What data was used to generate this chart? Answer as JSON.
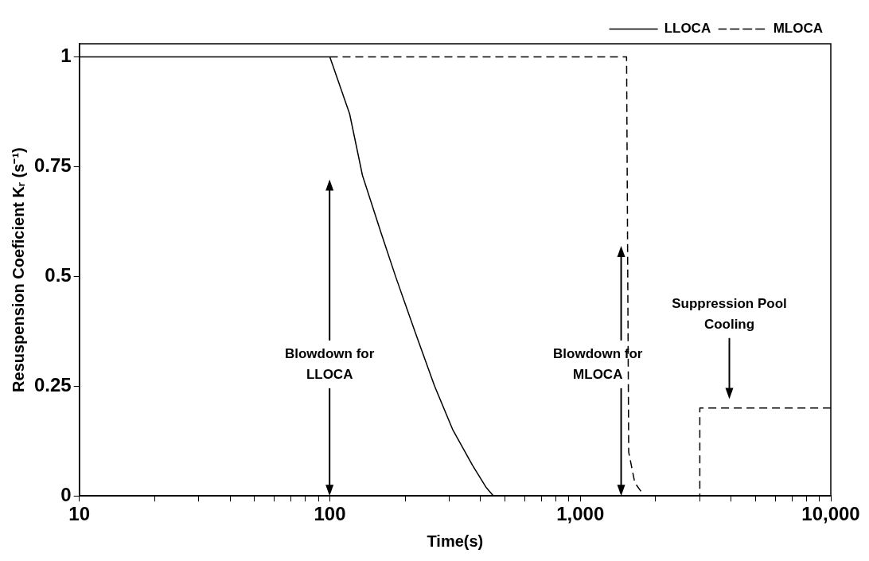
{
  "chart_data": {
    "type": "line",
    "xlabel": "Time(s)",
    "ylabel": "Resuspension Coeficient Kᵣ (s⁻¹)",
    "log": "x",
    "xlim": [
      10,
      10000
    ],
    "ylim": [
      0,
      1.03
    ],
    "xticks": [
      10,
      {
        "value": 20,
        "label": null
      },
      {
        "value": 30,
        "label": null
      },
      {
        "value": 40,
        "label": null
      },
      {
        "value": 50,
        "label": null
      },
      {
        "value": 60,
        "label": null
      },
      {
        "value": 70,
        "label": null
      },
      {
        "value": 80,
        "label": null
      },
      {
        "value": 90,
        "label": null
      },
      100,
      {
        "value": 200,
        "label": null
      },
      {
        "value": 300,
        "label": null
      },
      {
        "value": 400,
        "label": null
      },
      {
        "value": 500,
        "label": null
      },
      {
        "value": 600,
        "label": null
      },
      {
        "value": 700,
        "label": null
      },
      {
        "value": 800,
        "label": null
      },
      {
        "value": 900,
        "label": null
      },
      {
        "value": 1000,
        "label": "1,000"
      },
      {
        "value": 2000,
        "label": null
      },
      {
        "value": 3000,
        "label": null
      },
      {
        "value": 4000,
        "label": null
      },
      {
        "value": 5000,
        "label": null
      },
      {
        "value": 6000,
        "label": null
      },
      {
        "value": 7000,
        "label": null
      },
      {
        "value": 8000,
        "label": null
      },
      {
        "value": 9000,
        "label": null
      },
      {
        "value": 10000,
        "label": "10,000"
      }
    ],
    "yticks": [
      0,
      0.25,
      0.5,
      0.75,
      1
    ],
    "legend": "top right",
    "marker": "none",
    "series": [
      {
        "name": "LLOCA",
        "color": "#000000",
        "line_style": "solid",
        "x": [
          10,
          100,
          120,
          135,
          160,
          183,
          220,
          262,
          310,
          371,
          420,
          450
        ],
        "values": [
          1,
          1,
          0.87,
          0.73,
          0.6,
          0.5,
          0.37,
          0.25,
          0.15,
          0.07,
          0.02,
          0
        ]
      },
      {
        "name": "MLOCA",
        "color": "#000000",
        "line_style": "dashed",
        "x": [
          100,
          1530,
          1560,
          1650,
          1800,
          3000,
          3000,
          10000
        ],
        "values": [
          1,
          1,
          0.1,
          0.03,
          0,
          0,
          0.2,
          0.2
        ]
      }
    ],
    "annotations": [
      "Blowdown for\nLLOCA",
      "Blowdown for\nMLOCA",
      "Suppression Pool\nCooling"
    ]
  }
}
